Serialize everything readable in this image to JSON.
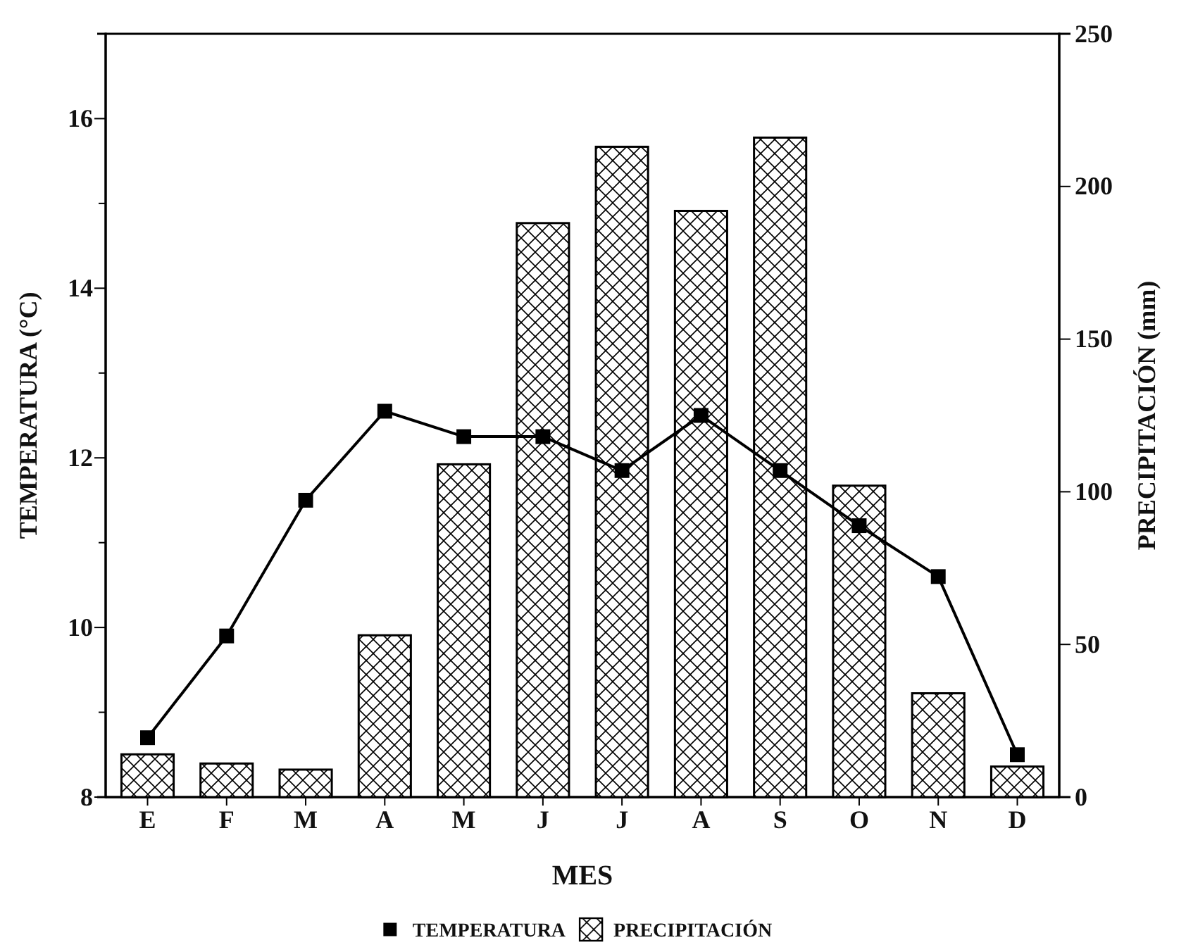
{
  "chart_data": {
    "type": "bar",
    "xlabel": "MES",
    "ylabel": "TEMPERATURA (°C)",
    "y2label": "PRECIPITACIÓN (mm)",
    "categories": [
      "E",
      "F",
      "M",
      "A",
      "M",
      "J",
      "J",
      "A",
      "S",
      "O",
      "N",
      "D"
    ],
    "series": [
      {
        "name": "TEMPERATURA",
        "type": "line",
        "color": "#000000",
        "marker": "square",
        "values": [
          8.7,
          9.9,
          11.5,
          12.55,
          12.25,
          12.25,
          11.85,
          12.5,
          11.85,
          11.2,
          10.6,
          8.5
        ]
      },
      {
        "name": "PRECIPITACIÓN",
        "axis": "y2",
        "color": "#000000",
        "values": [
          14,
          11,
          9,
          53,
          109,
          188,
          213,
          192,
          216,
          102,
          34,
          10
        ]
      }
    ],
    "ylim": [
      8,
      17
    ],
    "yticks": [
      8,
      {
        "value": 9,
        "label": null
      },
      10,
      {
        "value": 11,
        "label": null
      },
      12,
      {
        "value": 13,
        "label": null
      },
      14,
      {
        "value": 15,
        "label": null
      },
      16
    ],
    "y2lim": [
      0,
      250
    ],
    "y2ticks": [
      0,
      50,
      100,
      150,
      200,
      250
    ],
    "grid": false,
    "legend": "bottom"
  }
}
